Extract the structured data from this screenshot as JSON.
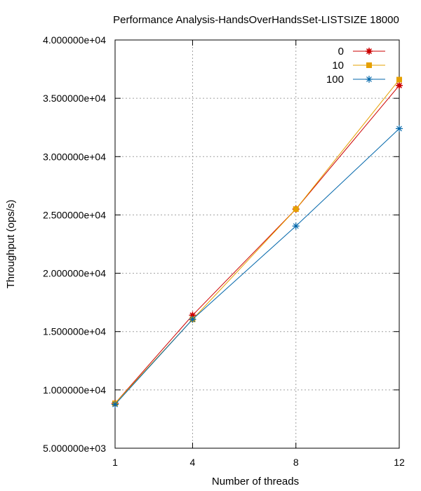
{
  "chart_data": {
    "type": "line",
    "title": "Performance Analysis-HandsOverHandsSet-LISTSIZE 18000",
    "xlabel": "Number of threads",
    "ylabel": "Throughput (ops/s)",
    "x": [
      1,
      4,
      8,
      12
    ],
    "xticks": [
      "1",
      "4",
      "8",
      "12"
    ],
    "xlim": [
      1,
      12
    ],
    "ylim": [
      5000,
      40000
    ],
    "yticks": [
      5000,
      10000,
      15000,
      20000,
      25000,
      30000,
      35000,
      40000
    ],
    "ytick_labels": [
      "5.000000e+03",
      "1.000000e+04",
      "1.500000e+04",
      "2.000000e+04",
      "2.500000e+04",
      "3.000000e+04",
      "3.500000e+04",
      "4.000000e+04"
    ],
    "grid": true,
    "legend_position": "top-right",
    "series": [
      {
        "name": "0",
        "values": [
          8850,
          16400,
          25500,
          36100
        ],
        "color": "#cc0000",
        "marker": "star-filled"
      },
      {
        "name": "10",
        "values": [
          8850,
          16050,
          25500,
          36600
        ],
        "color": "#e6a000",
        "marker": "square"
      },
      {
        "name": "100",
        "values": [
          8750,
          16050,
          24050,
          32400
        ],
        "color": "#0066aa",
        "marker": "asterisk"
      }
    ]
  }
}
